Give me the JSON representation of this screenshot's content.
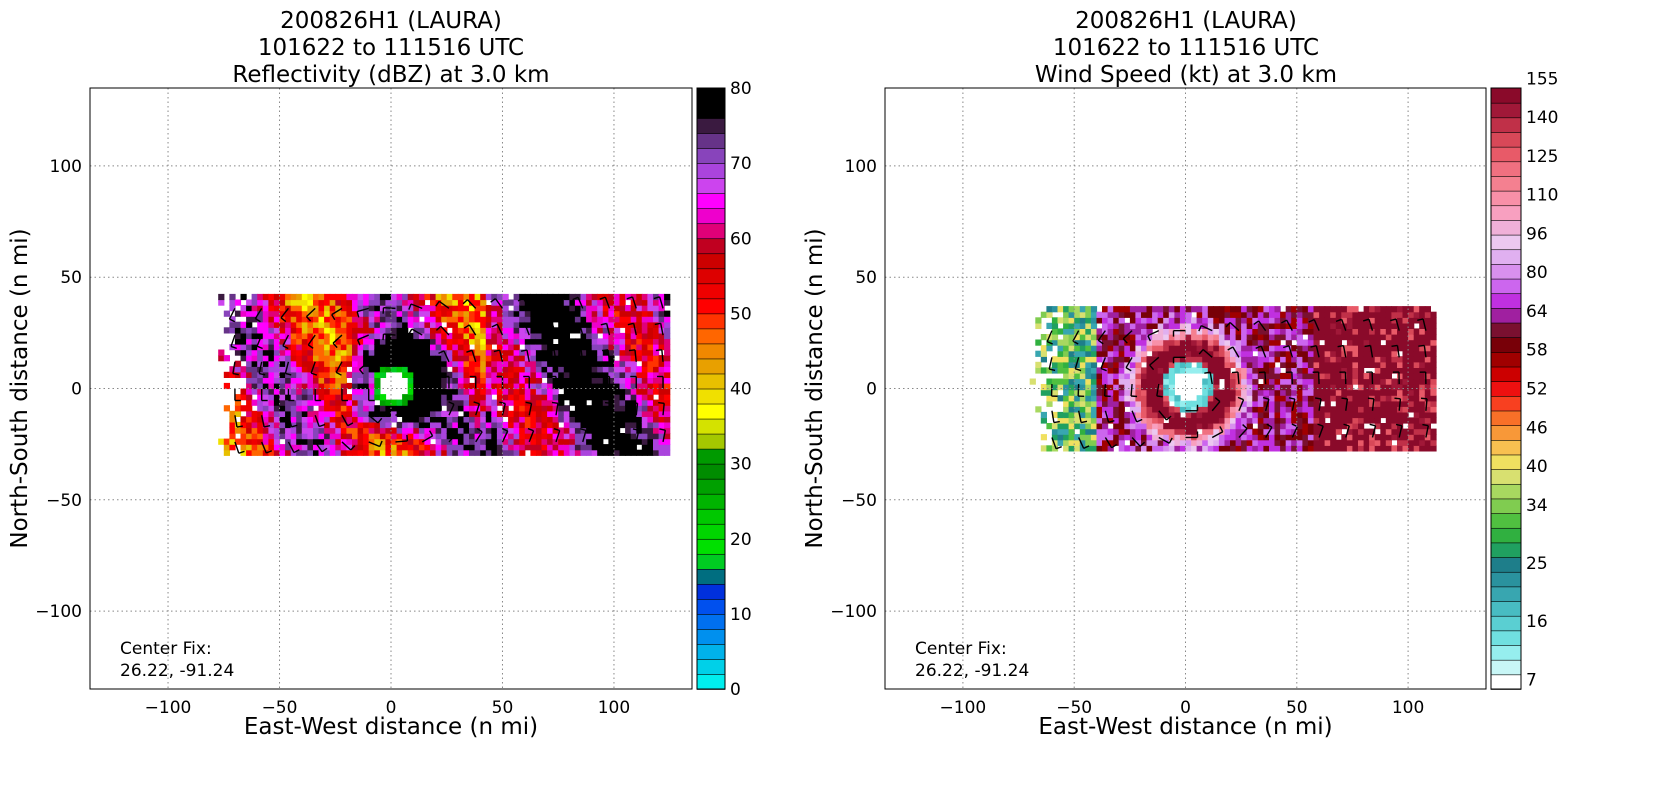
{
  "chart_data": [
    {
      "type": "heatmap",
      "title_lines": [
        "200826H1 (LAURA)",
        "101622 to 111516 UTC",
        "Reflectivity (dBZ) at 3.0 km"
      ],
      "xlabel": "East-West distance (n mi)",
      "ylabel": "North-South distance (n mi)",
      "xlim": [
        -135,
        135
      ],
      "ylim": [
        -135,
        135
      ],
      "x_ticks": [
        -100,
        -50,
        0,
        50,
        100
      ],
      "y_ticks": [
        -100,
        -50,
        0,
        50,
        100
      ],
      "grid": true,
      "annotation_lines": [
        "Center Fix:",
        "26.22, -91.24"
      ],
      "colorbar": {
        "range": [
          0,
          80
        ],
        "tick_values": [
          0,
          10,
          20,
          30,
          40,
          50,
          60,
          70,
          80
        ],
        "tick_labels": [
          "0",
          "10",
          "20",
          "30",
          "40",
          "50",
          "60",
          "70",
          "80"
        ],
        "colors": [
          "#00eeee",
          "#00d0e8",
          "#00b2ea",
          "#0090ee",
          "#0070f0",
          "#0050ee",
          "#0030dd",
          "#006e80",
          "#00cc22",
          "#00e000",
          "#00d600",
          "#00c800",
          "#00b400",
          "#00a000",
          "#008c00",
          "#009a00",
          "#a4c800",
          "#d4e200",
          "#ffff00",
          "#f0e000",
          "#e8c000",
          "#e8a000",
          "#f08800",
          "#ff6600",
          "#ff3300",
          "#ff0000",
          "#ee0000",
          "#dd0000",
          "#cc0000",
          "#c00020",
          "#e00078",
          "#ee00cc",
          "#ff00ff",
          "#cc44ee",
          "#aa44dd",
          "#8844bb",
          "#663388",
          "#3a1a40",
          "#000000",
          "#000000"
        ]
      },
      "field_description": "Storm reflectivity swath, roughly x -80 to 125 and y -30 to 42, eye near center",
      "series": [
        {
          "name": "reflectivity swath",
          "x_range": [
            -80,
            125
          ],
          "y_range": [
            -30,
            42
          ]
        }
      ]
    },
    {
      "type": "heatmap",
      "title_lines": [
        "200826H1 (LAURA)",
        "101622 to 111516 UTC",
        "Wind Speed (kt) at 3.0 km"
      ],
      "xlabel": "East-West distance (n mi)",
      "ylabel": "North-South distance (n mi)",
      "xlim": [
        -135,
        135
      ],
      "ylim": [
        -135,
        135
      ],
      "x_ticks": [
        -100,
        -50,
        0,
        50,
        100
      ],
      "y_ticks": [
        -100,
        -50,
        0,
        50,
        100
      ],
      "grid": true,
      "annotation_lines": [
        "Center Fix:",
        "26.22, -91.24"
      ],
      "colorbar": {
        "tick_labels": [
          "7",
          "16",
          "25",
          "34",
          "40",
          "46",
          "52",
          "58",
          "64",
          "80",
          "96",
          "110",
          "125",
          "140",
          "155"
        ],
        "tick_bins": [
          0,
          3,
          6,
          9,
          11,
          13,
          15,
          17,
          19,
          21,
          23,
          25,
          27,
          29,
          31
        ],
        "colors": [
          "#ffffff",
          "#c8f6f6",
          "#96eeee",
          "#70e0e0",
          "#5acfd2",
          "#48bcc2",
          "#38a6b0",
          "#2a929e",
          "#1e7e8a",
          "#20a060",
          "#30b040",
          "#50c040",
          "#80cc50",
          "#a8d860",
          "#d8e070",
          "#f0e060",
          "#f8c050",
          "#f89838",
          "#f87028",
          "#f84020",
          "#ee1010",
          "#cc0000",
          "#a00000",
          "#780008",
          "#7a1030",
          "#a020a0",
          "#c030e0",
          "#cc66ee",
          "#d890ee",
          "#e0b0f0",
          "#ecc8f0",
          "#f0b0d8",
          "#f8a0c0",
          "#f890a8",
          "#f48090",
          "#f07080",
          "#e85a68",
          "#d84858",
          "#c03048",
          "#a01838",
          "#8a0a2a"
        ]
      },
      "field_description": "Wind speed swath, roughly x -70 to 112 and y -28 to 36, eye near center",
      "series": [
        {
          "name": "wind speed swath",
          "x_range": [
            -70,
            112
          ],
          "y_range": [
            -28,
            36
          ]
        }
      ]
    }
  ]
}
